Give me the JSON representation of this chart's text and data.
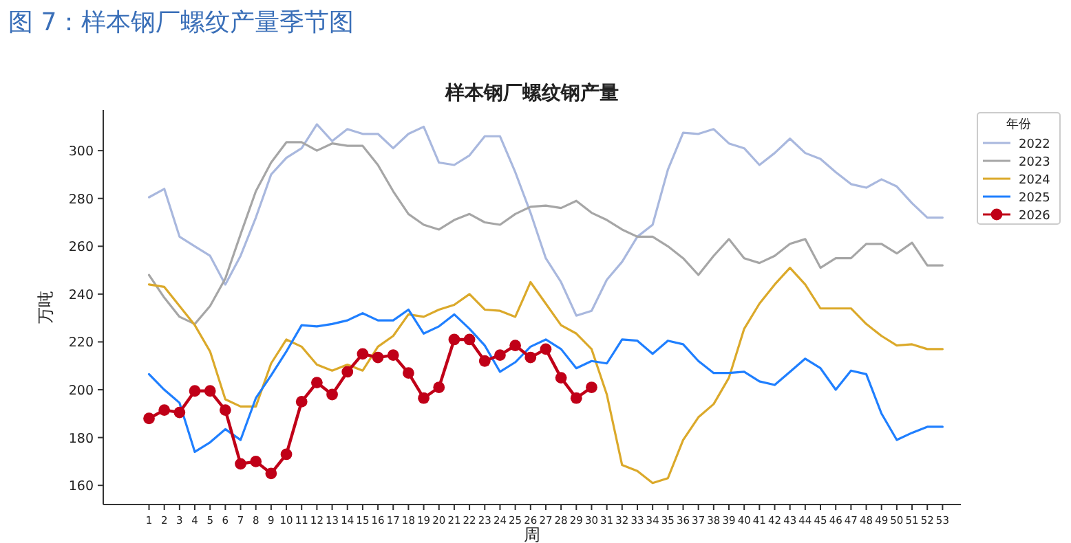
{
  "chart_data": {
    "type": "line",
    "title": "图 7：样本钢厂螺纹产量季节图",
    "subtitle": "样本钢厂螺纹钢产量",
    "xlabel": "周",
    "ylabel": "万吨",
    "legend_title": "年份",
    "legend": "right",
    "grid": false,
    "x": [
      1,
      2,
      3,
      4,
      5,
      6,
      7,
      8,
      9,
      10,
      11,
      12,
      13,
      14,
      15,
      16,
      17,
      18,
      19,
      20,
      21,
      22,
      23,
      24,
      25,
      26,
      27,
      28,
      29,
      30,
      31,
      32,
      33,
      34,
      35,
      36,
      37,
      38,
      39,
      40,
      41,
      42,
      43,
      44,
      45,
      46,
      47,
      48,
      49,
      50,
      51,
      52,
      53
    ],
    "xlim": [
      -2,
      54.2
    ],
    "xticks": [
      1,
      2,
      3,
      4,
      5,
      6,
      7,
      8,
      9,
      10,
      11,
      12,
      13,
      14,
      15,
      16,
      17,
      18,
      19,
      20,
      21,
      22,
      23,
      24,
      25,
      26,
      27,
      28,
      29,
      30,
      31,
      32,
      33,
      34,
      35,
      36,
      37,
      38,
      39,
      40,
      41,
      42,
      43,
      44,
      45,
      46,
      47,
      48,
      49,
      50,
      51,
      52,
      53
    ],
    "ylim": [
      152,
      317
    ],
    "yticks": [
      160,
      180,
      200,
      220,
      240,
      260,
      280,
      300
    ],
    "series": [
      {
        "name": "2022",
        "color": "#a9b8de",
        "marker": "none",
        "values": [
          280.5,
          284,
          264,
          260,
          256,
          244,
          256,
          272,
          290,
          297,
          301,
          311,
          304,
          309,
          307,
          307,
          301,
          307,
          310,
          295,
          294,
          298,
          306,
          306,
          291,
          274,
          255,
          245,
          231,
          233,
          246,
          253.5,
          264,
          269,
          292,
          307.5,
          307,
          309,
          303,
          301,
          294,
          299,
          305,
          299,
          296.5,
          291,
          286,
          284.5,
          288,
          285,
          278,
          272,
          272
        ]
      },
      {
        "name": "2023",
        "color": "#a6a6a6",
        "marker": "none",
        "values": [
          248,
          238.5,
          230.5,
          227.5,
          235,
          246.5,
          265,
          283,
          295,
          303.5,
          303.5,
          300,
          303,
          302,
          302,
          294,
          283,
          273.5,
          269,
          267,
          271,
          273.5,
          270,
          269,
          273.5,
          276.5,
          277,
          276,
          279,
          274,
          271,
          267,
          264,
          264,
          260,
          255,
          248,
          256,
          263,
          255,
          253,
          256,
          261,
          263,
          251,
          255,
          255,
          261,
          261,
          257,
          261.5,
          252,
          252
        ]
      },
      {
        "name": "2024",
        "color": "#dba92a",
        "marker": "none",
        "values": [
          244,
          243,
          235,
          227,
          216,
          196,
          193,
          193,
          211,
          221,
          218,
          210.5,
          208,
          210.5,
          208,
          218,
          222.5,
          231.5,
          230.5,
          233.5,
          235.5,
          240,
          233.5,
          233,
          230.5,
          245,
          236,
          227,
          223.5,
          217,
          198,
          168.5,
          166,
          161,
          163,
          179,
          188.5,
          194,
          205,
          225.5,
          236,
          244,
          251,
          244,
          234,
          234,
          234,
          227.5,
          222.5,
          218.5,
          219,
          217,
          217
        ]
      },
      {
        "name": "2025",
        "color": "#1f7fff",
        "marker": "none",
        "values": [
          206.5,
          200,
          194.5,
          174,
          178,
          183.5,
          179,
          196.5,
          206,
          216,
          227,
          226.5,
          227.5,
          229,
          232,
          229,
          229,
          233.5,
          223.5,
          226.5,
          231.5,
          225.5,
          218.5,
          207.5,
          211.5,
          218,
          221,
          217,
          209,
          212,
          211,
          221,
          220.5,
          215,
          220.5,
          219,
          212,
          207,
          207,
          207.5,
          203.5,
          202,
          207.5,
          213,
          209,
          200,
          208,
          206.5,
          190,
          179,
          182,
          184.5,
          184.5
        ]
      },
      {
        "name": "2026",
        "color": "#c00018",
        "marker": "circle",
        "values": [
          188,
          191.5,
          190.5,
          199.5,
          199.5,
          191.5,
          169,
          170,
          165,
          173,
          195,
          203,
          198,
          207.5,
          215,
          213.5,
          214.5,
          207,
          196.5,
          201,
          221,
          221,
          212,
          214.5,
          218.5,
          213.5,
          217,
          205,
          196.5,
          201,
          null,
          null,
          null,
          null,
          null,
          null,
          null,
          null,
          null,
          null,
          null,
          null,
          null,
          null,
          null,
          null,
          null,
          null,
          null,
          null,
          null,
          null,
          null
        ]
      }
    ]
  }
}
